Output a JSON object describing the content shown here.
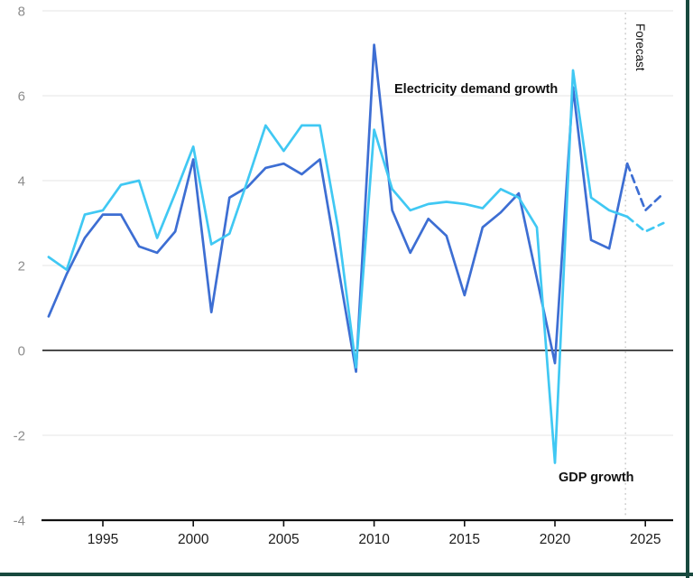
{
  "chart_data": {
    "type": "line",
    "title": "",
    "x_years": [
      1992,
      1993,
      1994,
      1995,
      1996,
      1997,
      1998,
      1999,
      2000,
      2001,
      2002,
      2003,
      2004,
      2005,
      2006,
      2007,
      2008,
      2009,
      2010,
      2011,
      2012,
      2013,
      2014,
      2015,
      2016,
      2017,
      2018,
      2019,
      2020,
      2021,
      2022,
      2023,
      2024,
      2025,
      2026
    ],
    "series": [
      {
        "name": "Electricity demand growth",
        "color": "#3D6ED3",
        "values": [
          0.8,
          1.8,
          2.65,
          3.2,
          3.2,
          2.45,
          2.3,
          2.8,
          4.5,
          0.9,
          3.6,
          3.85,
          4.3,
          4.4,
          4.15,
          4.5,
          2.0,
          -0.5,
          7.2,
          3.3,
          2.3,
          3.1,
          2.7,
          1.3,
          2.9,
          3.25,
          3.7,
          1.7,
          -0.3,
          6.2,
          2.6,
          2.4,
          4.4,
          3.3,
          3.7
        ]
      },
      {
        "name": "GDP growth",
        "color": "#40C8F3",
        "values": [
          2.2,
          1.9,
          3.2,
          3.3,
          3.9,
          4.0,
          2.65,
          3.7,
          4.8,
          2.5,
          2.75,
          4.0,
          5.3,
          4.7,
          5.3,
          5.3,
          2.9,
          -0.4,
          5.2,
          3.8,
          3.3,
          3.45,
          3.5,
          3.45,
          3.35,
          3.8,
          3.6,
          2.9,
          -2.65,
          6.6,
          3.6,
          3.3,
          3.15,
          2.8,
          3.0
        ]
      }
    ],
    "forecast": {
      "label": "Forecast",
      "start_year": 2024,
      "line_style": "dotted-vertical"
    },
    "axes": {
      "ylim": [
        -4,
        8
      ],
      "yticks": [
        8,
        6,
        4,
        2,
        0,
        "-2",
        "-4"
      ],
      "ytick_values": [
        8,
        6,
        4,
        2,
        0,
        -2,
        -4
      ],
      "xticks": [
        1995,
        2000,
        2005,
        2010,
        2015,
        2020,
        2025
      ],
      "grid": "horizontal",
      "zero_line": true,
      "legend_position": "inline-annotations"
    },
    "colors": {
      "grid": "#e9e9e9",
      "axis": "#111111",
      "ytick_text": "#8c8c8c",
      "xtick_text": "#1b1b1b",
      "annotation_text": "#111111",
      "forecast_divider": "#c8c8c8",
      "window_frame": "#17493E"
    }
  }
}
